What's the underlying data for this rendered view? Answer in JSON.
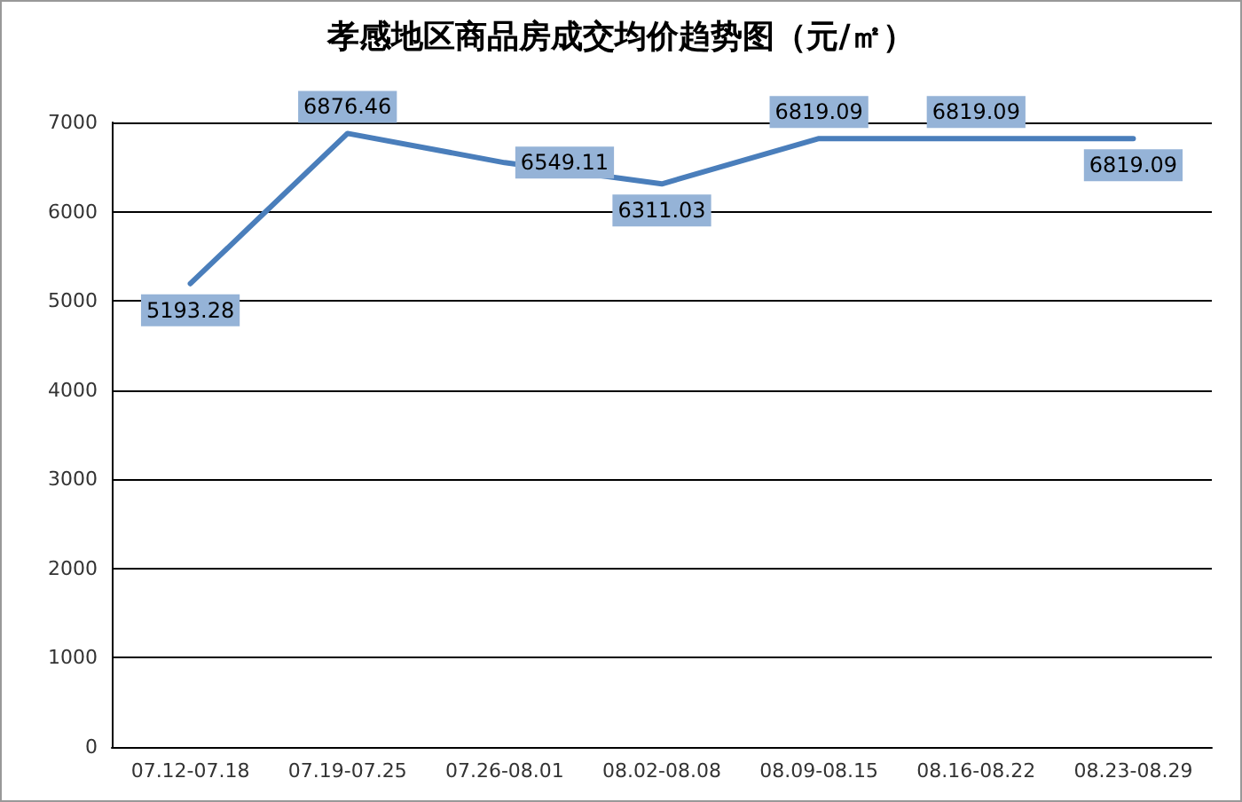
{
  "chart_data": {
    "type": "line",
    "title": "孝感地区商品房成交均价趋势图（元/㎡）",
    "categories": [
      "07.12-07.18",
      "07.19-07.25",
      "07.26-08.01",
      "08.02-08.08",
      "08.09-08.15",
      "08.16-08.22",
      "08.23-08.29"
    ],
    "series": [
      {
        "color": "#4a7ebb",
        "values": [
          5193.28,
          6876.46,
          6549.11,
          6311.03,
          6819.09,
          6819.09,
          6819.09
        ]
      }
    ],
    "ylim": [
      0,
      7000
    ],
    "yticks": [
      0,
      1000,
      2000,
      3000,
      4000,
      5000,
      6000,
      7000
    ],
    "grid": "y",
    "marker": "none",
    "line_style": "solid",
    "data_labels": true
  }
}
